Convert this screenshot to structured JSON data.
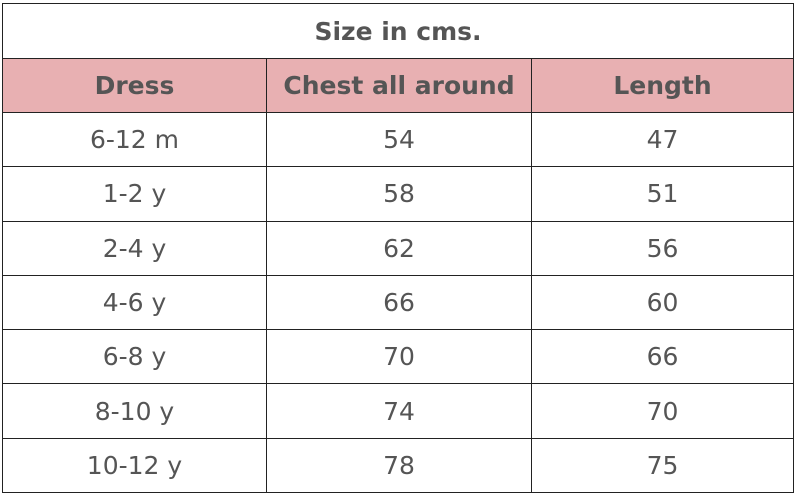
{
  "title": "Size in cms.",
  "header_color": "#e8b0b2",
  "columns": [
    "Dress",
    "Chest all around",
    "Length"
  ],
  "rows": [
    [
      "6-12 m",
      "54",
      "47"
    ],
    [
      "1-2 y",
      "58",
      "51"
    ],
    [
      "2-4 y",
      "62",
      "56"
    ],
    [
      "4-6 y",
      "66",
      "60"
    ],
    [
      "6-8 y",
      "70",
      "66"
    ],
    [
      "8-10 y",
      "74",
      "70"
    ],
    [
      "10-12 y",
      "78",
      "75"
    ]
  ]
}
